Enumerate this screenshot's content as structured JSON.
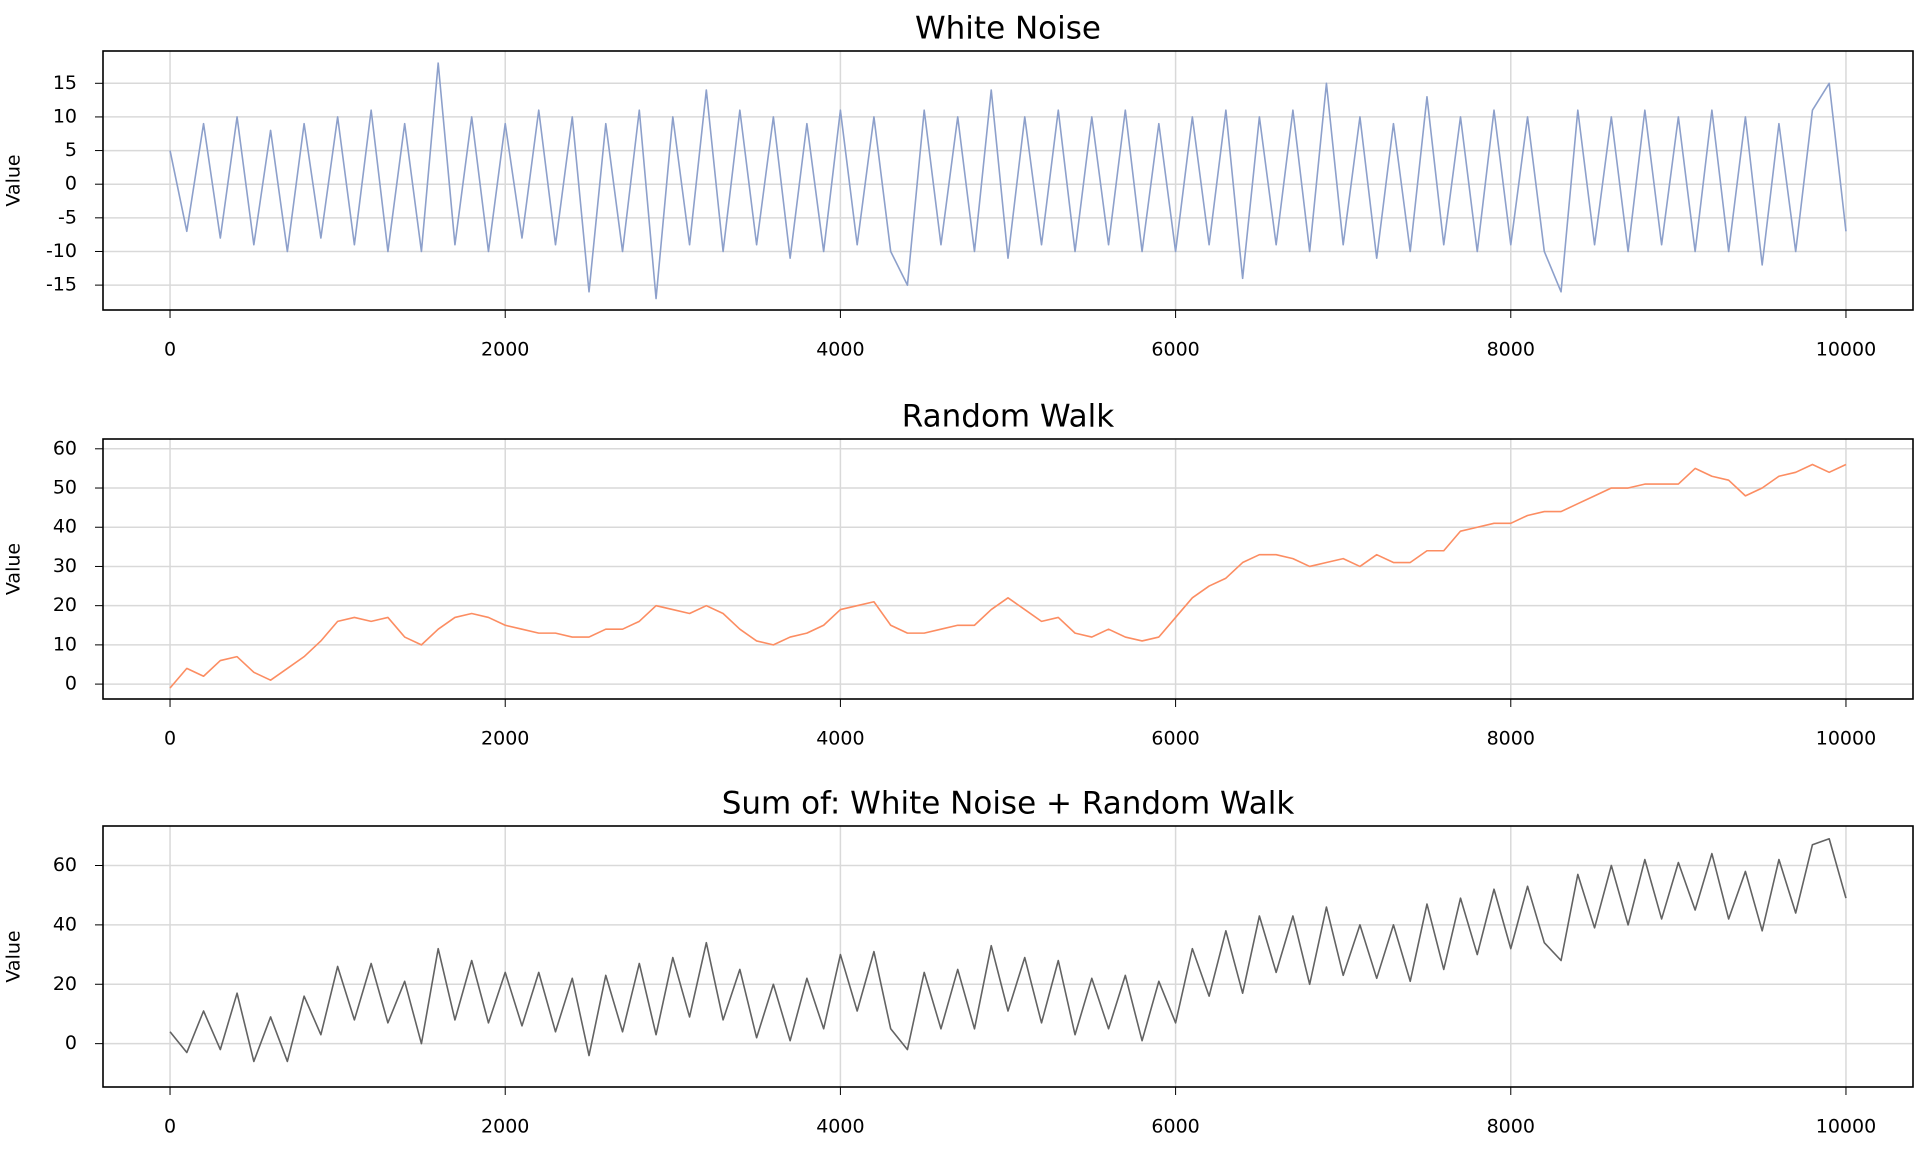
{
  "chart_data": [
    {
      "type": "line",
      "title": "White Noise",
      "y_label": "Value",
      "color": "#8da0cb",
      "grid": true,
      "xlim": [
        -400,
        10400
      ],
      "ylim": [
        -18.7,
        19.8
      ],
      "xticks": [
        0,
        2000,
        4000,
        6000,
        8000,
        10000
      ],
      "yticks": [
        -15,
        -10,
        -5,
        0,
        5,
        10,
        15
      ],
      "x": [
        0,
        100,
        200,
        300,
        400,
        500,
        600,
        700,
        800,
        900,
        1000,
        1100,
        1200,
        1300,
        1400,
        1500,
        1600,
        1700,
        1800,
        1900,
        2000,
        2100,
        2200,
        2300,
        2400,
        2500,
        2600,
        2700,
        2800,
        2900,
        3000,
        3100,
        3200,
        3300,
        3400,
        3500,
        3600,
        3700,
        3800,
        3900,
        4000,
        4100,
        4200,
        4300,
        4400,
        4500,
        4600,
        4700,
        4800,
        4900,
        5000,
        5100,
        5200,
        5300,
        5400,
        5500,
        5600,
        5700,
        5800,
        5900,
        6000,
        6100,
        6200,
        6300,
        6400,
        6500,
        6600,
        6700,
        6800,
        6900,
        7000,
        7100,
        7200,
        7300,
        7400,
        7500,
        7600,
        7700,
        7800,
        7900,
        8000,
        8100,
        8200,
        8300,
        8400,
        8500,
        8600,
        8700,
        8800,
        8900,
        9000,
        9100,
        9200,
        9300,
        9400,
        9500,
        9600,
        9700,
        9800,
        9900,
        10000
      ],
      "values": [
        5,
        -7,
        9,
        -8,
        10,
        -9,
        8,
        -10,
        9,
        -8,
        10,
        -9,
        11,
        -10,
        9,
        -10,
        18,
        -9,
        10,
        -10,
        9,
        -8,
        11,
        -9,
        10,
        -16,
        9,
        -10,
        11,
        -17,
        10,
        -9,
        14,
        -10,
        11,
        -9,
        10,
        -11,
        9,
        -10,
        11,
        -9,
        10,
        -10,
        -15,
        11,
        -9,
        10,
        -10,
        14,
        -11,
        10,
        -9,
        11,
        -10,
        10,
        -9,
        11,
        -10,
        9,
        -10,
        10,
        -9,
        11,
        -14,
        10,
        -9,
        11,
        -10,
        15,
        -9,
        10,
        -11,
        9,
        -10,
        13,
        -9,
        10,
        -10,
        11,
        -9,
        10,
        -10,
        -16,
        11,
        -9,
        10,
        -10,
        11,
        -9,
        10,
        -10,
        11,
        -10,
        10,
        -12,
        9,
        -10,
        11,
        15,
        -7
      ]
    },
    {
      "type": "line",
      "title": "Random Walk",
      "y_label": "Value",
      "color": "#fc8d62",
      "grid": true,
      "xlim": [
        -400,
        10400
      ],
      "ylim": [
        -3.8,
        62.5
      ],
      "xticks": [
        0,
        2000,
        4000,
        6000,
        8000,
        10000
      ],
      "yticks": [
        0,
        10,
        20,
        30,
        40,
        50,
        60
      ],
      "x": [
        0,
        100,
        200,
        300,
        400,
        500,
        600,
        700,
        800,
        900,
        1000,
        1100,
        1200,
        1300,
        1400,
        1500,
        1600,
        1700,
        1800,
        1900,
        2000,
        2100,
        2200,
        2300,
        2400,
        2500,
        2600,
        2700,
        2800,
        2900,
        3000,
        3100,
        3200,
        3300,
        3400,
        3500,
        3600,
        3700,
        3800,
        3900,
        4000,
        4100,
        4200,
        4300,
        4400,
        4500,
        4600,
        4700,
        4800,
        4900,
        5000,
        5100,
        5200,
        5300,
        5400,
        5500,
        5600,
        5700,
        5800,
        5900,
        6000,
        6100,
        6200,
        6300,
        6400,
        6500,
        6600,
        6700,
        6800,
        6900,
        7000,
        7100,
        7200,
        7300,
        7400,
        7500,
        7600,
        7700,
        7800,
        7900,
        8000,
        8100,
        8200,
        8300,
        8400,
        8500,
        8600,
        8700,
        8800,
        8900,
        9000,
        9100,
        9200,
        9300,
        9400,
        9500,
        9600,
        9700,
        9800,
        9900,
        10000
      ],
      "values": [
        -1,
        4,
        2,
        6,
        7,
        3,
        1,
        4,
        7,
        11,
        16,
        17,
        16,
        17,
        12,
        10,
        14,
        17,
        18,
        17,
        15,
        14,
        13,
        13,
        12,
        12,
        14,
        14,
        16,
        20,
        19,
        18,
        20,
        18,
        14,
        11,
        10,
        12,
        13,
        15,
        19,
        20,
        21,
        15,
        13,
        13,
        14,
        15,
        15,
        19,
        22,
        19,
        16,
        17,
        13,
        12,
        14,
        12,
        11,
        12,
        17,
        22,
        25,
        27,
        31,
        33,
        33,
        32,
        30,
        31,
        32,
        30,
        33,
        31,
        31,
        34,
        34,
        39,
        40,
        41,
        41,
        43,
        44,
        44,
        46,
        48,
        50,
        50,
        51,
        51,
        51,
        55,
        53,
        52,
        48,
        50,
        53,
        54,
        56,
        54,
        56
      ]
    },
    {
      "type": "line",
      "title": "Sum of: White Noise + Random Walk",
      "y_label": "Value",
      "color": "#636363",
      "grid": true,
      "xlim": [
        -400,
        10400
      ],
      "ylim": [
        -14.6,
        73.3
      ],
      "xticks": [
        0,
        2000,
        4000,
        6000,
        8000,
        10000
      ],
      "yticks": [
        0,
        20,
        40,
        60
      ],
      "x": [
        0,
        100,
        200,
        300,
        400,
        500,
        600,
        700,
        800,
        900,
        1000,
        1100,
        1200,
        1300,
        1400,
        1500,
        1600,
        1700,
        1800,
        1900,
        2000,
        2100,
        2200,
        2300,
        2400,
        2500,
        2600,
        2700,
        2800,
        2900,
        3000,
        3100,
        3200,
        3300,
        3400,
        3500,
        3600,
        3700,
        3800,
        3900,
        4000,
        4100,
        4200,
        4300,
        4400,
        4500,
        4600,
        4700,
        4800,
        4900,
        5000,
        5100,
        5200,
        5300,
        5400,
        5500,
        5600,
        5700,
        5800,
        5900,
        6000,
        6100,
        6200,
        6300,
        6400,
        6500,
        6600,
        6700,
        6800,
        6900,
        7000,
        7100,
        7200,
        7300,
        7400,
        7500,
        7600,
        7700,
        7800,
        7900,
        8000,
        8100,
        8200,
        8300,
        8400,
        8500,
        8600,
        8700,
        8800,
        8900,
        9000,
        9100,
        9200,
        9300,
        9400,
        9500,
        9600,
        9700,
        9800,
        9900,
        10000
      ],
      "values": [
        4,
        -3,
        11,
        -2,
        17,
        -6,
        9,
        -6,
        16,
        3,
        26,
        8,
        27,
        7,
        21,
        0,
        32,
        8,
        28,
        7,
        24,
        6,
        24,
        4,
        22,
        -4,
        23,
        4,
        27,
        3,
        29,
        9,
        34,
        8,
        25,
        2,
        20,
        1,
        22,
        5,
        30,
        11,
        31,
        5,
        -2,
        24,
        5,
        25,
        5,
        33,
        11,
        29,
        7,
        28,
        3,
        22,
        5,
        23,
        1,
        21,
        7,
        32,
        16,
        38,
        17,
        43,
        24,
        43,
        20,
        46,
        23,
        40,
        22,
        40,
        21,
        47,
        25,
        49,
        30,
        52,
        32,
        53,
        34,
        28,
        57,
        39,
        60,
        40,
        62,
        42,
        61,
        45,
        64,
        42,
        58,
        38,
        62,
        44,
        67,
        69,
        49
      ]
    }
  ]
}
